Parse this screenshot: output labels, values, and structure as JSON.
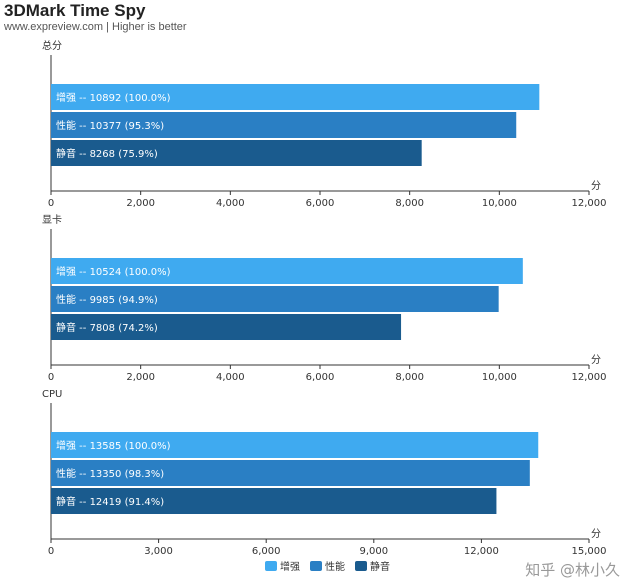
{
  "header": {
    "title": "3DMark Time Spy",
    "subtitle": "www.expreview.com | Higher is better"
  },
  "watermark": "知乎 @林小久",
  "colors": {
    "增强": "#3faaf0",
    "性能": "#2a7fc4",
    "静音": "#1a5b8e"
  },
  "legend": [
    "增强",
    "性能",
    "静音"
  ],
  "chart_data": [
    {
      "type": "bar",
      "orientation": "horizontal",
      "title": "总分",
      "unit_label": "分",
      "xlim": [
        0,
        12000
      ],
      "ticks": [
        "0",
        "2,000",
        "4,000",
        "6,000",
        "8,000",
        "10,000",
        "12,000"
      ],
      "tick_values": [
        0,
        2000,
        4000,
        6000,
        8000,
        10000,
        12000
      ],
      "bars": [
        {
          "category": "增强",
          "value": 10892,
          "label": "增强  --  10892 (100.0%)"
        },
        {
          "category": "性能",
          "value": 10377,
          "label": "性能  --  10377 (95.3%)"
        },
        {
          "category": "静音",
          "value": 8268,
          "label": "静音  --  8268 (75.9%)"
        }
      ]
    },
    {
      "type": "bar",
      "orientation": "horizontal",
      "title": "显卡",
      "unit_label": "分",
      "xlim": [
        0,
        12000
      ],
      "ticks": [
        "0",
        "2,000",
        "4,000",
        "6,000",
        "8,000",
        "10,000",
        "12,000"
      ],
      "tick_values": [
        0,
        2000,
        4000,
        6000,
        8000,
        10000,
        12000
      ],
      "bars": [
        {
          "category": "增强",
          "value": 10524,
          "label": "增强  --  10524 (100.0%)"
        },
        {
          "category": "性能",
          "value": 9985,
          "label": "性能  --  9985 (94.9%)"
        },
        {
          "category": "静音",
          "value": 7808,
          "label": "静音  --  7808 (74.2%)"
        }
      ]
    },
    {
      "type": "bar",
      "orientation": "horizontal",
      "title": "CPU",
      "unit_label": "分",
      "xlim": [
        0,
        15000
      ],
      "ticks": [
        "0",
        "3,000",
        "6,000",
        "9,000",
        "12,000",
        "15,000"
      ],
      "tick_values": [
        0,
        3000,
        6000,
        9000,
        12000,
        15000
      ],
      "bars": [
        {
          "category": "增强",
          "value": 13585,
          "label": "增强  --  13585 (100.0%)"
        },
        {
          "category": "性能",
          "value": 13350,
          "label": "性能  --  13350 (98.3%)"
        },
        {
          "category": "静音",
          "value": 12419,
          "label": "静音  --  12419 (91.4%)"
        }
      ]
    }
  ]
}
